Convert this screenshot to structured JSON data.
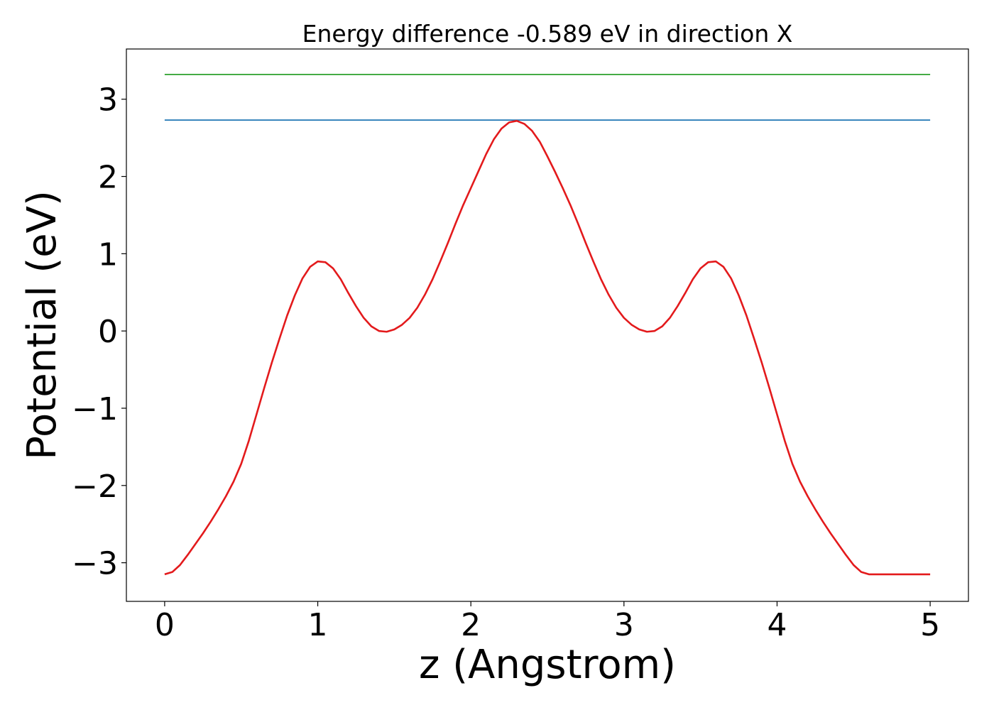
{
  "chart_data": {
    "type": "line",
    "title": "Energy difference -0.589 eV in direction X",
    "xlabel": "z (Angstrom)",
    "ylabel": "Potential (eV)",
    "xlim": [
      -0.25,
      5.25
    ],
    "ylim": [
      -3.5,
      3.65
    ],
    "x_ticks": [
      0,
      1,
      2,
      3,
      4,
      5
    ],
    "x_tick_labels": [
      "0",
      "1",
      "2",
      "3",
      "4",
      "5"
    ],
    "y_ticks": [
      -3,
      -2,
      -1,
      0,
      1,
      2,
      3
    ],
    "y_tick_labels": [
      "−3",
      "−2",
      "−1",
      "0",
      "1",
      "2",
      "3"
    ],
    "grid": false,
    "series": [
      {
        "color": "#2ca02c",
        "x": [
          0,
          5
        ],
        "y": [
          3.32,
          3.32
        ]
      },
      {
        "color": "#1f77b4",
        "x": [
          0,
          5
        ],
        "y": [
          2.73,
          2.73
        ]
      },
      {
        "color": "#e31a1c",
        "x": [
          0,
          0.05,
          0.1,
          0.15,
          0.2,
          0.25,
          0.3,
          0.35,
          0.4,
          0.45,
          0.5,
          0.55,
          0.6,
          0.65,
          0.7,
          0.75,
          0.8,
          0.85,
          0.9,
          0.95,
          1.0,
          1.05,
          1.1,
          1.15,
          1.2,
          1.25,
          1.3,
          1.35,
          1.4,
          1.45,
          1.5,
          1.55,
          1.6,
          1.65,
          1.7,
          1.75,
          1.8,
          1.85,
          1.9,
          1.95,
          2.0,
          2.05,
          2.1,
          2.15,
          2.2,
          2.25,
          2.3,
          2.35,
          2.4,
          2.45,
          2.5,
          2.55,
          2.6,
          2.65,
          2.7,
          2.75,
          2.8,
          2.85,
          2.9,
          2.95,
          3.0,
          3.05,
          3.1,
          3.15,
          3.2,
          3.25,
          3.3,
          3.35,
          3.4,
          3.45,
          3.5,
          3.55,
          3.6,
          3.65,
          3.7,
          3.75,
          3.8,
          3.85,
          3.9,
          3.95,
          4.0,
          4.05,
          4.1,
          4.15,
          4.2,
          4.25,
          4.3,
          4.35,
          4.4,
          4.45,
          4.5,
          4.55,
          4.6,
          4.65,
          4.7,
          4.75,
          4.8,
          4.85,
          4.9,
          4.95,
          5.0
        ],
        "y": [
          -3.15,
          -3.12,
          -3.03,
          -2.9,
          -2.76,
          -2.62,
          -2.47,
          -2.31,
          -2.14,
          -1.95,
          -1.72,
          -1.42,
          -1.08,
          -0.74,
          -0.41,
          -0.1,
          0.2,
          0.46,
          0.68,
          0.83,
          0.9,
          0.89,
          0.81,
          0.67,
          0.49,
          0.32,
          0.17,
          0.06,
          0.0,
          -0.01,
          0.02,
          0.08,
          0.17,
          0.3,
          0.47,
          0.67,
          0.9,
          1.14,
          1.39,
          1.63,
          1.85,
          2.07,
          2.29,
          2.48,
          2.62,
          2.7,
          2.72,
          2.68,
          2.59,
          2.45,
          2.26,
          2.06,
          1.85,
          1.63,
          1.39,
          1.14,
          0.9,
          0.67,
          0.47,
          0.3,
          0.17,
          0.08,
          0.02,
          -0.01,
          0.0,
          0.06,
          0.17,
          0.32,
          0.49,
          0.67,
          0.81,
          0.89,
          0.9,
          0.83,
          0.68,
          0.46,
          0.2,
          -0.1,
          -0.41,
          -0.74,
          -1.08,
          -1.42,
          -1.72,
          -1.95,
          -2.14,
          -2.31,
          -2.47,
          -2.62,
          -2.76,
          -2.9,
          -3.03,
          -3.12,
          -3.15,
          -3.15,
          -3.15,
          -3.15,
          -3.15,
          -3.15,
          -3.15,
          -3.15,
          -3.15
        ]
      }
    ]
  }
}
